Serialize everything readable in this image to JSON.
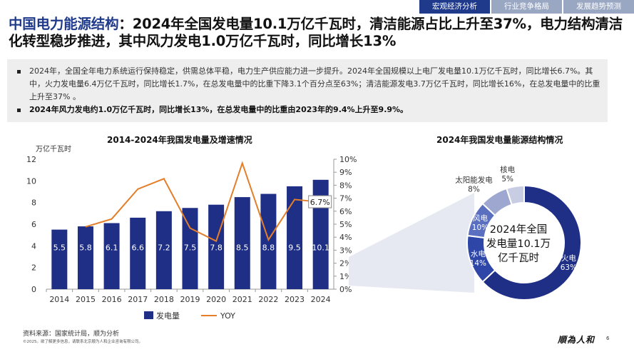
{
  "nav": {
    "tabs": [
      {
        "label": "宏观经济分析",
        "active": true
      },
      {
        "label": "行业竞争格局",
        "active": false
      },
      {
        "label": "发展趋势预测",
        "active": false
      }
    ]
  },
  "title": {
    "highlight": "中国电力能源结构",
    "rest": "：2024年全国发电量10.1万亿千瓦时，清洁能源占比上升至37%，电力结构清洁化转型稳步推进，其中风力发电1.0万亿千瓦时，同比增长13%"
  },
  "summary": {
    "bullets": [
      {
        "text": "2024年，全国全年电力系统运行保持稳定，供需总体平稳，电力生产供应能力进一步提升。2024年全国规模以上电厂发电量10.1万亿千瓦时，同比增长6.7%。其中，火力发电量6.4万亿千瓦时，同比增长1.7%，在总发电量中的比重下降3.1个百分点至63%；清洁能源发电3.7万亿千瓦时，同比增长16%，在总发电量中的比重上升至37% 。",
        "bold": false
      },
      {
        "text": "2024年风力发电约1.0万亿千瓦时，同比增长13%，在总发电量中的比重由2023年的9.4%上升至9.9%。",
        "bold": true
      }
    ]
  },
  "colors": {
    "primary": "#1f2f86",
    "line": "#e37e2b",
    "pie": [
      "#1f2f86",
      "#2d46a8",
      "#5a6fc0",
      "#9ea7cf",
      "#c9cde3"
    ]
  },
  "chart_data": [
    {
      "type": "bar",
      "title": "2014-2024年我国发电量及增速情况",
      "ylabel": "万亿千瓦时",
      "categories": [
        "2014",
        "2015",
        "2016",
        "2017",
        "2018",
        "2019",
        "2020",
        "2021",
        "2022",
        "2023",
        "2024"
      ],
      "series": [
        {
          "name": "发电量",
          "kind": "bar",
          "axis": "left",
          "values": [
            5.5,
            5.8,
            6.1,
            6.6,
            7.2,
            7.5,
            7.8,
            8.5,
            8.8,
            9.5,
            10.1
          ],
          "labels": [
            "5.5",
            "5.8",
            "6.1",
            "6.6",
            "7.2",
            "7.5",
            "7.8",
            "8.5",
            "8.8",
            "9.5",
            "10.1"
          ]
        },
        {
          "name": "YOY",
          "kind": "line",
          "axis": "right",
          "values": [
            null,
            4.8,
            5.4,
            7.7,
            8.5,
            4.7,
            3.7,
            9.7,
            3.8,
            6.9,
            6.7
          ]
        }
      ],
      "annotation": {
        "category": "2024",
        "text": "6.7%"
      },
      "ylim": [
        0,
        12
      ],
      "yticks": [
        "0",
        "2",
        "4",
        "6",
        "8",
        "10",
        "12"
      ],
      "y2lim": [
        0,
        10
      ],
      "y2ticks": [
        "0%",
        "1%",
        "2%",
        "3%",
        "4%",
        "5%",
        "6%",
        "7%",
        "8%",
        "9%",
        "10%"
      ],
      "legend": "bottom"
    },
    {
      "type": "pie",
      "title": "2024年我国发电量能源结构情况",
      "center_text": [
        "2024年全国",
        "发电量10.1万",
        "亿千瓦时"
      ],
      "slices": [
        {
          "name": "火电",
          "value": 63,
          "label": "63%"
        },
        {
          "name": "水电",
          "value": 14,
          "label": "14%"
        },
        {
          "name": "风电",
          "value": 10,
          "label": "10%"
        },
        {
          "name": "太阳能发电",
          "value": 8,
          "label": "8%"
        },
        {
          "name": "核电",
          "value": 5,
          "label": "5%"
        }
      ]
    }
  ],
  "footer": {
    "source": "资料来源：国家统计局，顺为分析",
    "copyright": "©2025。欲了解更多信息，请联系北京顺为人和企业咨询有限公司。",
    "logo": "順為人和",
    "page": "6"
  }
}
